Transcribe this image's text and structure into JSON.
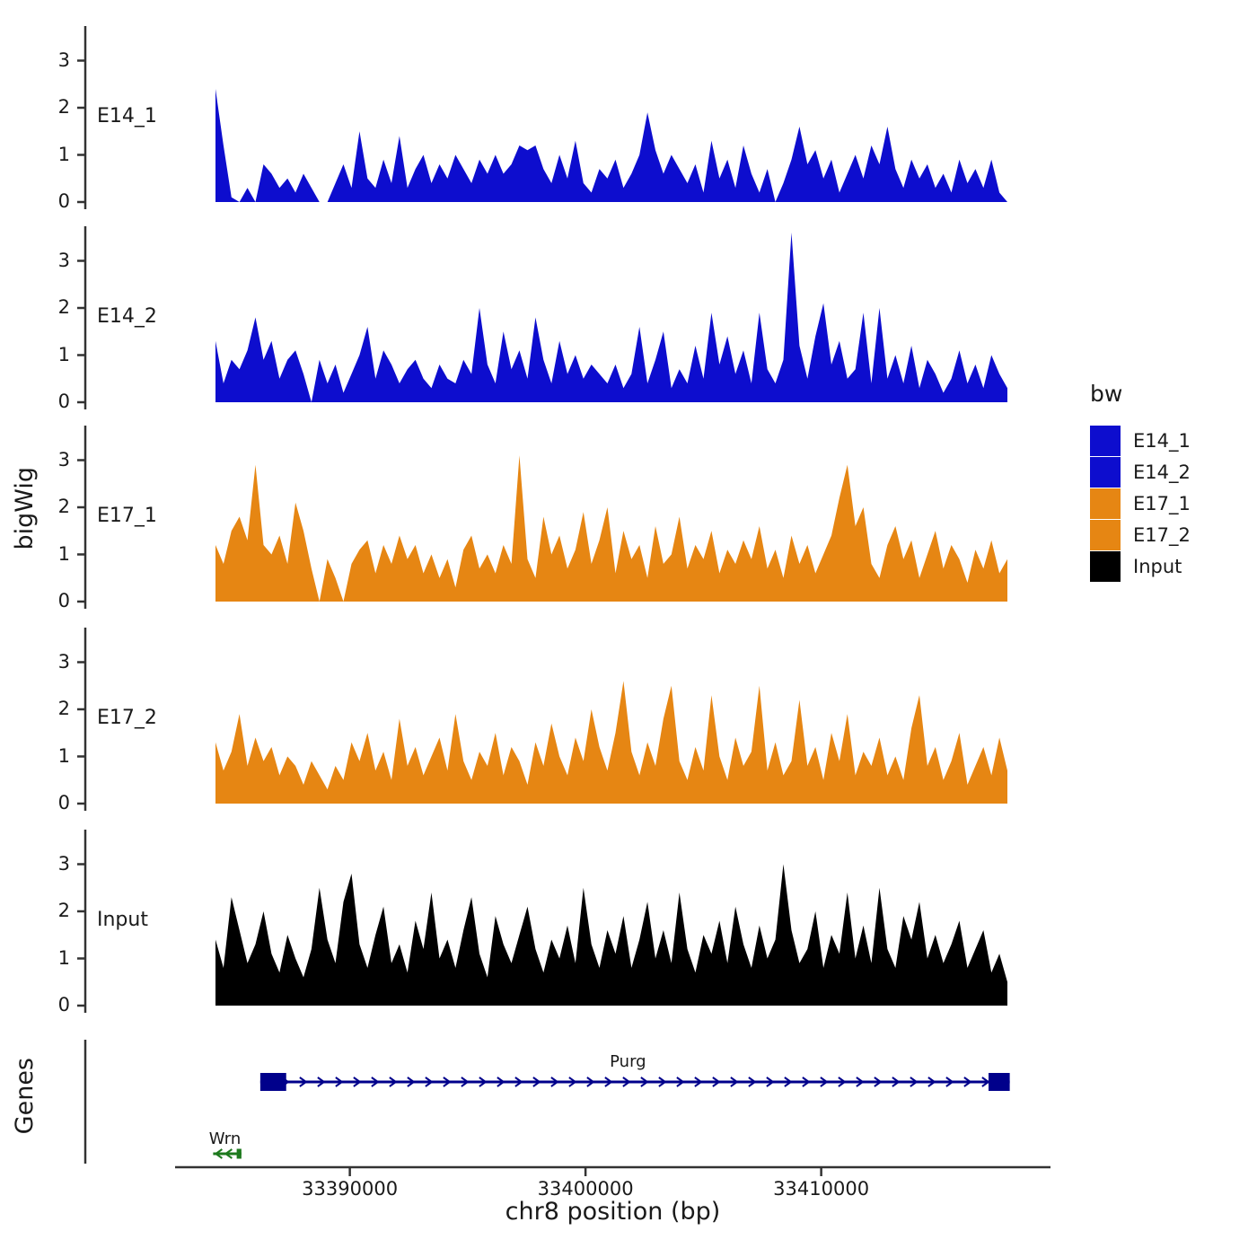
{
  "labels": {
    "y_axis": "bigWig",
    "x_axis": "chr8 position (bp)",
    "genes_axis": "Genes"
  },
  "legend": {
    "title": "bw",
    "items": [
      {
        "label": "E14_1",
        "color": "#0D0DCE"
      },
      {
        "label": "E14_2",
        "color": "#0D0DCE"
      },
      {
        "label": "E17_1",
        "color": "#E68613"
      },
      {
        "label": "E17_2",
        "color": "#E68613"
      },
      {
        "label": "Input",
        "color": "#000000"
      }
    ]
  },
  "chart_data": {
    "type": "area",
    "title": "",
    "xlabel": "chr8 position (bp)",
    "ylabel": "bigWig",
    "x_start": 33384300,
    "x_end": 33417900,
    "x_ticks": [
      33390000,
      33400000,
      33410000
    ],
    "x_tick_labels": [
      "33390000",
      "33400000",
      "33410000"
    ],
    "y_ticks": [
      0,
      1,
      2,
      3
    ],
    "ylim": [
      0,
      3.7
    ],
    "grid": false,
    "legend_position": "right",
    "tracks": [
      {
        "name": "E14_1",
        "color": "#0D0DCE",
        "values": [
          2.4,
          1.2,
          0.1,
          0.0,
          0.3,
          0.0,
          0.8,
          0.6,
          0.3,
          0.5,
          0.2,
          0.6,
          0.3,
          0.0,
          0.0,
          0.4,
          0.8,
          0.3,
          1.5,
          0.5,
          0.3,
          0.9,
          0.4,
          1.4,
          0.3,
          0.7,
          1.0,
          0.4,
          0.8,
          0.5,
          1.0,
          0.7,
          0.4,
          0.9,
          0.6,
          1.0,
          0.6,
          0.8,
          1.2,
          1.1,
          1.2,
          0.7,
          0.4,
          1.0,
          0.5,
          1.3,
          0.4,
          0.2,
          0.7,
          0.5,
          0.9,
          0.3,
          0.6,
          1.0,
          1.9,
          1.1,
          0.6,
          1.0,
          0.7,
          0.4,
          0.8,
          0.2,
          1.3,
          0.5,
          0.9,
          0.3,
          1.2,
          0.6,
          0.2,
          0.7,
          0.0,
          0.4,
          0.9,
          1.6,
          0.8,
          1.1,
          0.5,
          0.9,
          0.2,
          0.6,
          1.0,
          0.5,
          1.2,
          0.8,
          1.6,
          0.7,
          0.3,
          0.9,
          0.5,
          0.8,
          0.3,
          0.6,
          0.2,
          0.9,
          0.4,
          0.7,
          0.3,
          0.9,
          0.2,
          0.0
        ]
      },
      {
        "name": "E14_2",
        "color": "#0D0DCE",
        "values": [
          1.3,
          0.4,
          0.9,
          0.7,
          1.1,
          1.8,
          0.9,
          1.3,
          0.5,
          0.9,
          1.1,
          0.6,
          0.0,
          0.9,
          0.4,
          0.8,
          0.2,
          0.6,
          1.0,
          1.6,
          0.5,
          1.1,
          0.8,
          0.4,
          0.7,
          0.9,
          0.5,
          0.3,
          0.8,
          0.5,
          0.4,
          0.9,
          0.6,
          2.0,
          0.8,
          0.4,
          1.5,
          0.7,
          1.1,
          0.5,
          1.8,
          0.9,
          0.4,
          1.3,
          0.6,
          1.0,
          0.5,
          0.8,
          0.6,
          0.4,
          0.8,
          0.3,
          0.6,
          1.6,
          0.4,
          0.9,
          1.5,
          0.3,
          0.7,
          0.4,
          1.2,
          0.5,
          1.9,
          0.8,
          1.4,
          0.6,
          1.1,
          0.4,
          1.9,
          0.7,
          0.4,
          0.9,
          3.6,
          1.2,
          0.5,
          1.4,
          2.1,
          0.8,
          1.3,
          0.5,
          0.7,
          1.9,
          0.4,
          2.0,
          0.5,
          1.0,
          0.4,
          1.2,
          0.3,
          0.9,
          0.6,
          0.2,
          0.5,
          1.1,
          0.4,
          0.8,
          0.3,
          1.0,
          0.6,
          0.3
        ]
      },
      {
        "name": "E17_1",
        "color": "#E68613",
        "values": [
          1.2,
          0.8,
          1.5,
          1.8,
          1.3,
          2.9,
          1.2,
          1.0,
          1.4,
          0.8,
          2.1,
          1.5,
          0.7,
          0.0,
          0.9,
          0.5,
          0.0,
          0.8,
          1.1,
          1.3,
          0.6,
          1.2,
          0.8,
          1.4,
          0.9,
          1.2,
          0.6,
          1.0,
          0.5,
          0.9,
          0.3,
          1.1,
          1.4,
          0.7,
          1.0,
          0.6,
          1.2,
          0.8,
          3.1,
          0.9,
          0.5,
          1.8,
          1.0,
          1.4,
          0.7,
          1.1,
          1.9,
          0.8,
          1.3,
          2.0,
          0.6,
          1.5,
          0.9,
          1.2,
          0.5,
          1.6,
          0.8,
          1.0,
          1.8,
          0.7,
          1.2,
          0.9,
          1.5,
          0.6,
          1.1,
          0.8,
          1.3,
          0.9,
          1.6,
          0.7,
          1.1,
          0.5,
          1.4,
          0.8,
          1.2,
          0.6,
          1.0,
          1.4,
          2.2,
          2.9,
          1.6,
          2.0,
          0.8,
          0.5,
          1.2,
          1.6,
          0.9,
          1.3,
          0.5,
          1.0,
          1.5,
          0.7,
          1.2,
          0.9,
          0.4,
          1.1,
          0.7,
          1.3,
          0.6,
          0.9
        ]
      },
      {
        "name": "E17_2",
        "color": "#E68613",
        "values": [
          1.3,
          0.7,
          1.1,
          1.9,
          0.8,
          1.4,
          0.9,
          1.2,
          0.6,
          1.0,
          0.8,
          0.4,
          0.9,
          0.6,
          0.3,
          0.8,
          0.5,
          1.3,
          0.9,
          1.5,
          0.7,
          1.1,
          0.5,
          1.8,
          0.8,
          1.2,
          0.6,
          1.0,
          1.4,
          0.7,
          1.9,
          0.9,
          0.5,
          1.1,
          0.8,
          1.5,
          0.6,
          1.2,
          0.9,
          0.4,
          1.3,
          0.8,
          1.7,
          1.0,
          0.6,
          1.4,
          0.9,
          2.0,
          1.2,
          0.7,
          1.5,
          2.6,
          1.1,
          0.6,
          1.3,
          0.8,
          1.8,
          2.5,
          0.9,
          0.5,
          1.2,
          0.7,
          2.3,
          1.0,
          0.5,
          1.4,
          0.8,
          1.1,
          2.5,
          0.7,
          1.3,
          0.6,
          0.9,
          2.2,
          0.8,
          1.2,
          0.5,
          1.5,
          0.9,
          1.9,
          0.6,
          1.1,
          0.8,
          1.4,
          0.6,
          1.0,
          0.5,
          1.6,
          2.3,
          0.8,
          1.2,
          0.5,
          0.9,
          1.5,
          0.4,
          0.8,
          1.2,
          0.6,
          1.4,
          0.7
        ]
      },
      {
        "name": "Input",
        "color": "#000000",
        "values": [
          1.4,
          0.8,
          2.3,
          1.6,
          0.9,
          1.3,
          2.0,
          1.1,
          0.7,
          1.5,
          1.0,
          0.6,
          1.2,
          2.5,
          1.4,
          0.9,
          2.2,
          2.8,
          1.3,
          0.8,
          1.5,
          2.1,
          0.9,
          1.3,
          0.7,
          1.8,
          1.2,
          2.4,
          1.0,
          1.4,
          0.8,
          1.6,
          2.3,
          1.1,
          0.6,
          1.9,
          1.3,
          0.9,
          1.5,
          2.1,
          1.2,
          0.7,
          1.4,
          1.0,
          1.7,
          0.9,
          2.5,
          1.3,
          0.8,
          1.6,
          1.1,
          1.9,
          0.8,
          1.4,
          2.2,
          1.0,
          1.6,
          0.9,
          2.4,
          1.2,
          0.7,
          1.5,
          1.1,
          1.8,
          0.9,
          2.1,
          1.3,
          0.8,
          1.7,
          1.0,
          1.4,
          3.0,
          1.6,
          0.9,
          1.2,
          2.0,
          0.8,
          1.5,
          1.1,
          2.4,
          1.0,
          1.7,
          0.9,
          2.5,
          1.2,
          0.8,
          1.9,
          1.4,
          2.2,
          1.0,
          1.5,
          0.9,
          1.3,
          1.8,
          0.8,
          1.2,
          1.6,
          0.7,
          1.1,
          0.5
        ]
      }
    ],
    "genes": [
      {
        "name": "Purg",
        "color": "#00008B",
        "start": 33386200,
        "end": 33418000,
        "strand": "+",
        "exons": [
          [
            33386200,
            33387300
          ],
          [
            33417100,
            33418000
          ]
        ],
        "label_pos": 33401800
      },
      {
        "name": "Wrn",
        "color": "#1E7A1E",
        "start": 33384200,
        "end": 33385400,
        "strand": "-",
        "exons": [
          [
            33385200,
            33385400
          ]
        ],
        "label_pos": 33384700
      }
    ]
  }
}
